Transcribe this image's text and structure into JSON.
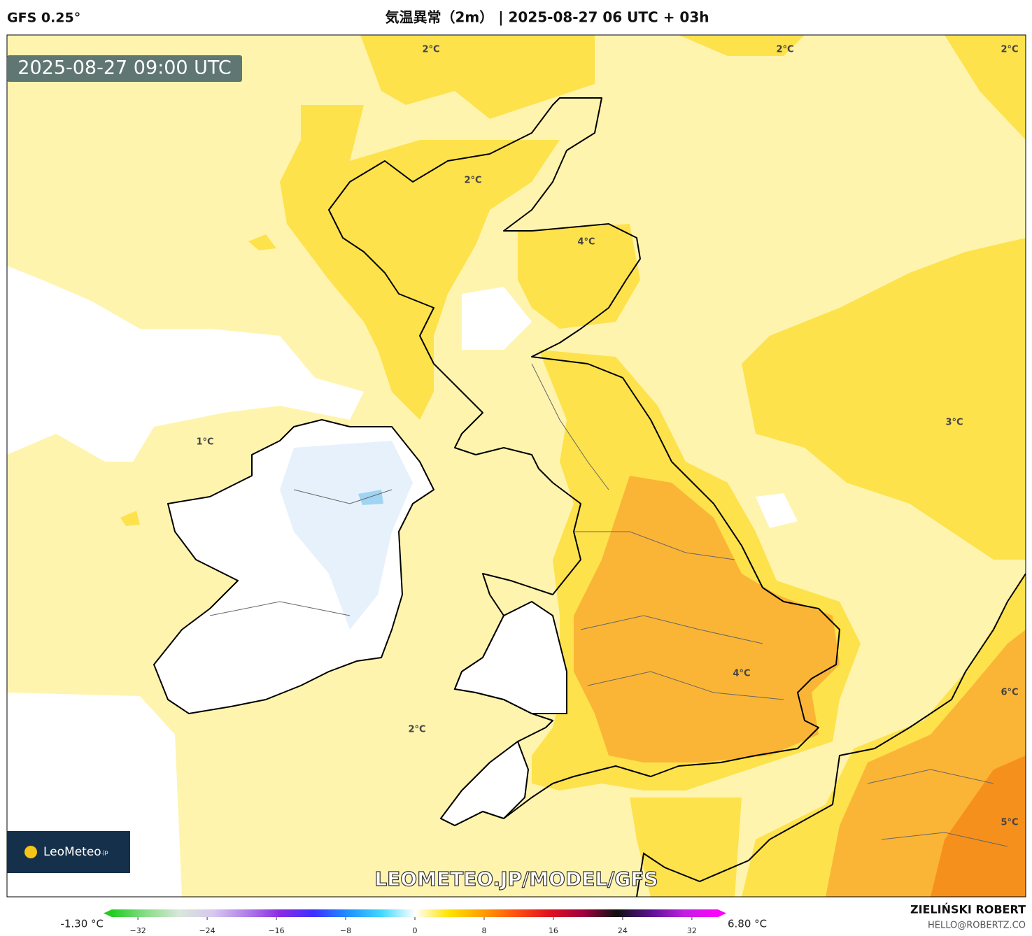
{
  "header": {
    "model": "GFS 0.25°",
    "title": "気温異常（2m） | 2025-08-27 06 UTC + 03h"
  },
  "map": {
    "valid_time": "2025-08-27 09:00 UTC",
    "contour_labels": [
      "2°C",
      "2°C",
      "2°C",
      "2°C",
      "4°C",
      "1°C",
      "3°C",
      "2°C",
      "4°C",
      "6°C",
      "5°C"
    ],
    "watermark": "LEOMETEO.JP/MODEL/GFS",
    "logo": "LeoMeteo",
    "logo_suffix": ".jp"
  },
  "colorbar": {
    "min_label": "-1.30 °C",
    "max_label": "6.80 °C",
    "lim": [
      -35,
      35
    ],
    "ticks": [
      {
        "value": -32,
        "label": "−32"
      },
      {
        "value": -24,
        "label": "−24"
      },
      {
        "value": -16,
        "label": "−16"
      },
      {
        "value": -8,
        "label": "−8"
      },
      0,
      8,
      16,
      24,
      32
    ],
    "colors": [
      "#22cc22",
      "#88dd88",
      "#d8e8d8",
      "#d8c8f0",
      "#b080e8",
      "#8a2be2",
      "#3a30ff",
      "#1e90ff",
      "#40d8ff",
      "#ffffff",
      "#ffe400",
      "#ffa000",
      "#ff5010",
      "#e01020",
      "#a00040",
      "#101010",
      "#5a1090",
      "#c020e0",
      "#ff00ff"
    ]
  },
  "credit": {
    "author": "ZIELIŃSKI ROBERT",
    "email": "HELLO@ROBERTZ.CO"
  }
}
